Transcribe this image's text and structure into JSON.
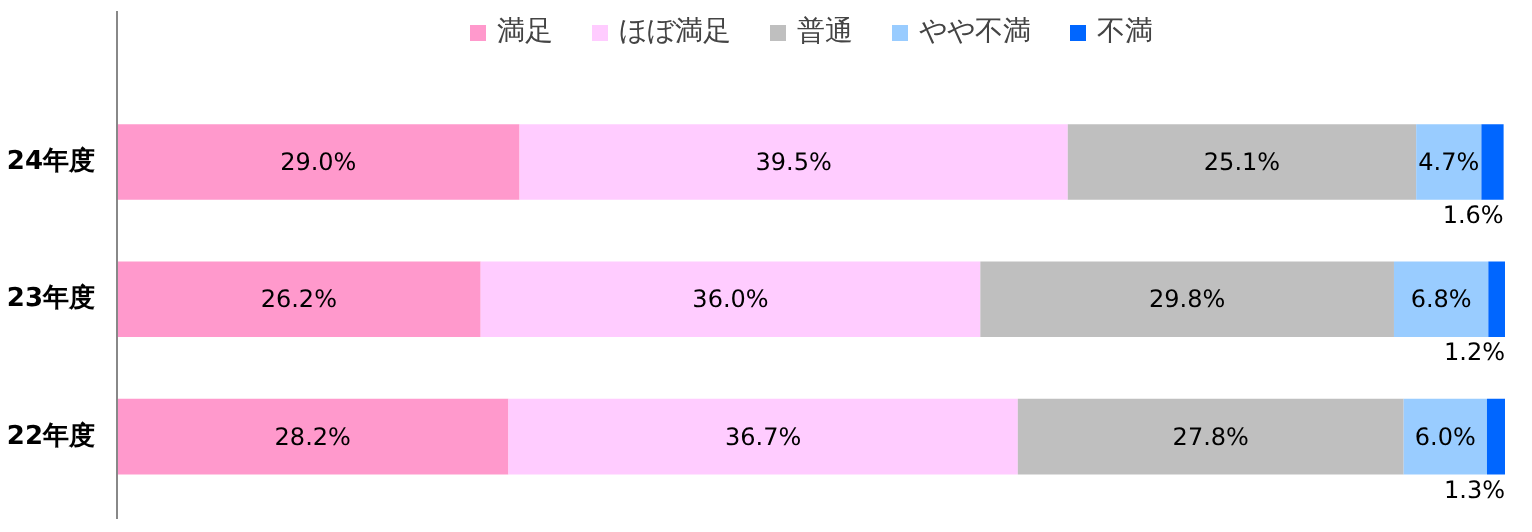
{
  "chart_data": {
    "type": "bar",
    "orientation": "horizontal",
    "stacked": true,
    "legend": "top",
    "categories": [
      "24年度",
      "23年度",
      "22年度"
    ],
    "series": [
      {
        "name": "満足",
        "color": "#ff99cc",
        "values": [
          29.0,
          26.2,
          28.2
        ],
        "value_labels": [
          "29.0%",
          "26.2%",
          "28.2%"
        ]
      },
      {
        "name": "ほぼ満足",
        "color": "#ffccff",
        "values": [
          39.5,
          36.0,
          36.7
        ],
        "value_labels": [
          "39.5%",
          "36.0%",
          "36.7%"
        ]
      },
      {
        "name": "普通",
        "color": "#bfbfbf",
        "values": [
          25.1,
          29.8,
          27.8
        ],
        "value_labels": [
          "25.1%",
          "29.8%",
          "27.8%"
        ]
      },
      {
        "name": "やや不満",
        "color": "#99ccff",
        "values": [
          4.7,
          6.8,
          6.0
        ],
        "value_labels": [
          "4.7%",
          "6.8%",
          "6.0%"
        ]
      },
      {
        "name": "不満",
        "color": "#0066ff",
        "values": [
          1.6,
          1.2,
          1.3
        ],
        "value_labels": [
          "1.6%",
          "1.2%",
          "1.3%"
        ]
      }
    ]
  }
}
